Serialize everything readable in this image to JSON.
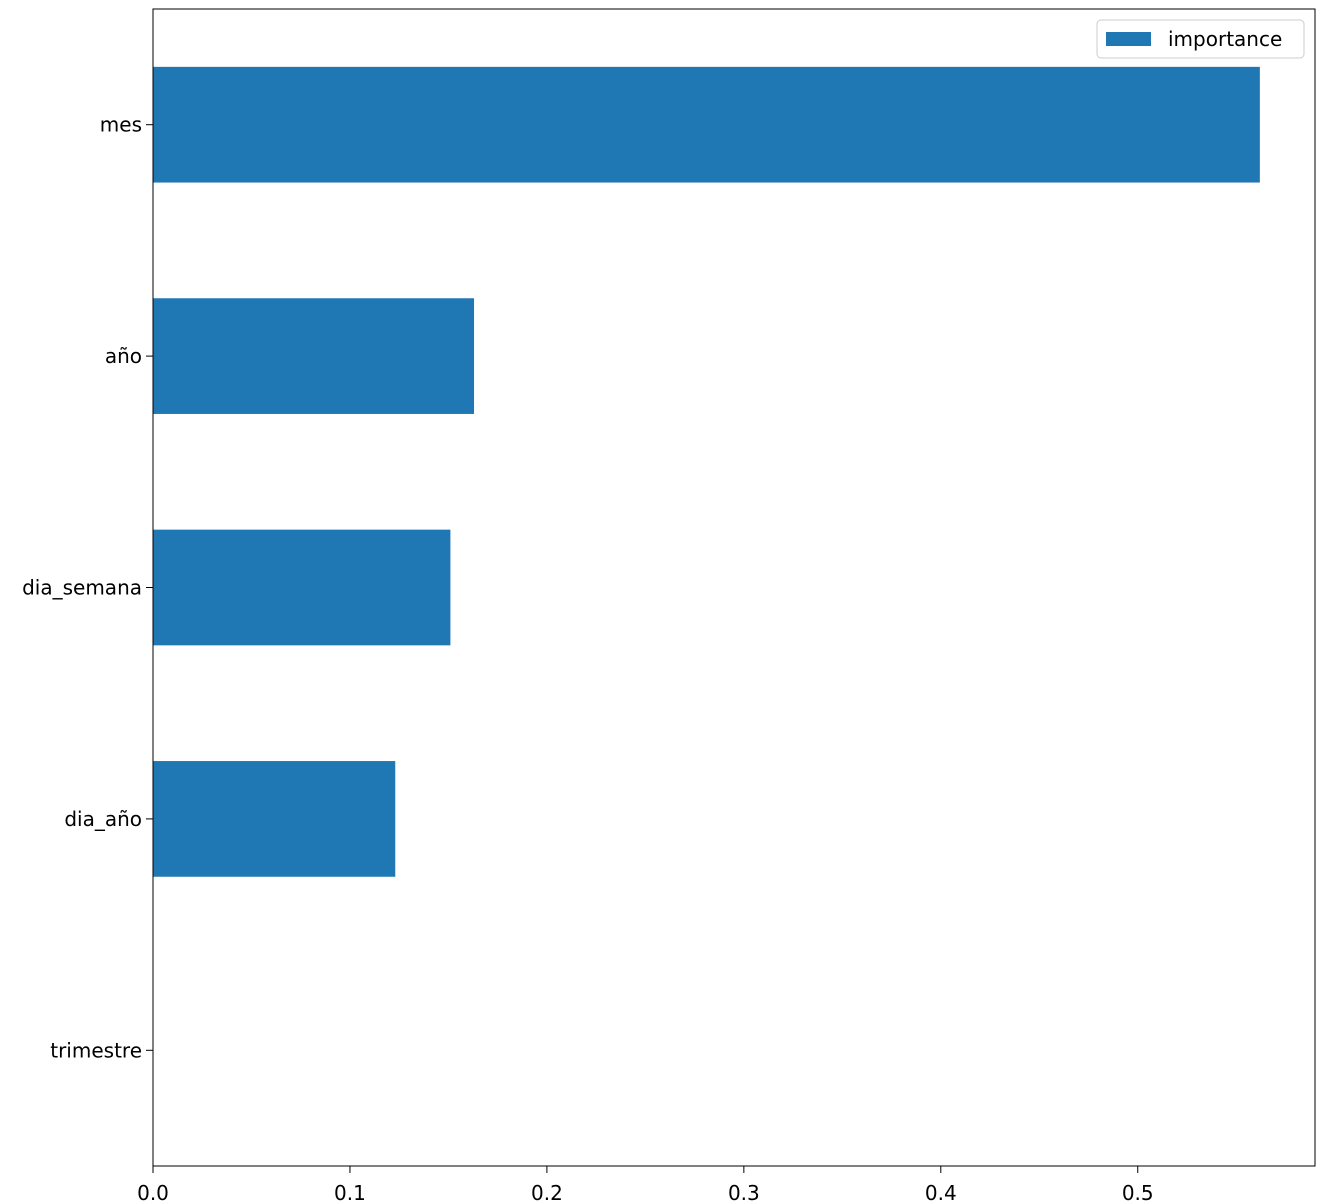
{
  "chart_data": {
    "type": "bar",
    "orientation": "horizontal",
    "categories": [
      "mes",
      "año",
      "dia_semana",
      "dia_año",
      "trimestre"
    ],
    "series": [
      {
        "name": "importance",
        "values": [
          0.562,
          0.163,
          0.151,
          0.123,
          0.0
        ],
        "color": "#1f77b4"
      }
    ],
    "xlim": [
      0.0,
      0.59
    ],
    "xticks": [
      0.0,
      0.1,
      0.2,
      0.3,
      0.4,
      0.5
    ],
    "xtick_labels": [
      "0.0",
      "0.1",
      "0.2",
      "0.3",
      "0.4",
      "0.5"
    ],
    "title": "",
    "xlabel": "",
    "ylabel": "",
    "grid": false,
    "legend": {
      "placement": "top-right",
      "entries": [
        "importance"
      ]
    }
  }
}
